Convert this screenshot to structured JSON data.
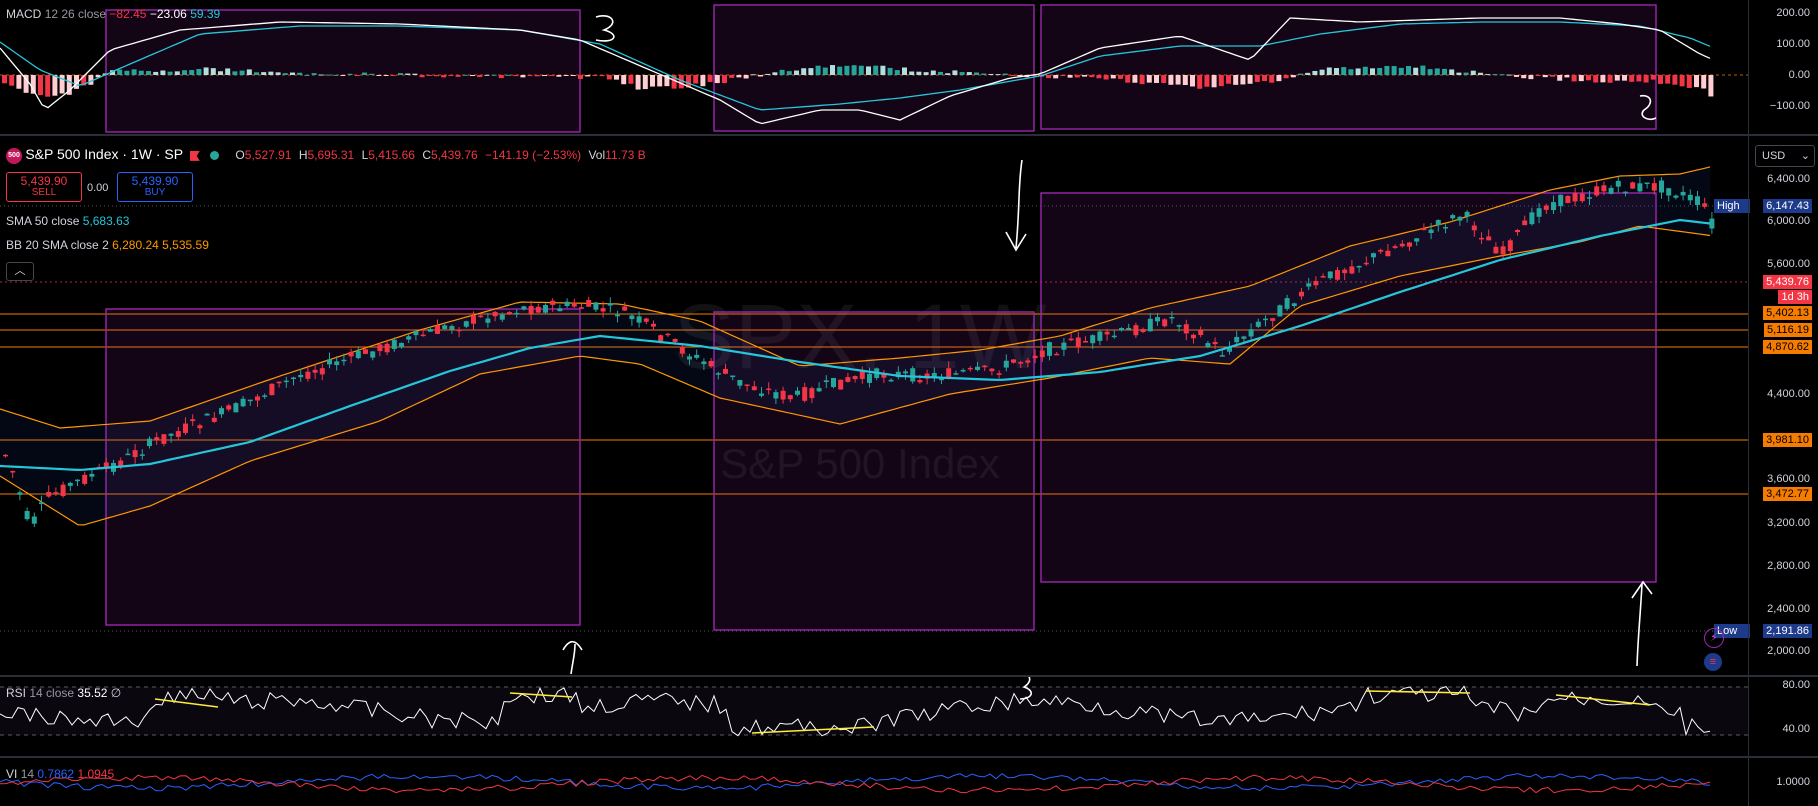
{
  "macd": {
    "legend": {
      "name": "MACD",
      "params": "12 26 close",
      "hist": "−82.45",
      "macd": "−23.06",
      "signal": "59.39"
    },
    "ticks": [
      "200.00",
      "100.00",
      "0.00",
      "−100.00"
    ]
  },
  "symbol": {
    "logo": "500",
    "title": "S&P 500 Index · 1W · SP",
    "ohlc": {
      "o_label": "O",
      "o": "5,527.91",
      "h_label": "H",
      "h": "5,695.31",
      "l_label": "L",
      "l": "5,415.66",
      "c_label": "C",
      "c": "5,439.76",
      "chg": "−141.19 (−2.53%)",
      "vol_label": "Vol",
      "vol": "11.73 B"
    },
    "sell": {
      "price": "5,439.90",
      "label": "SELL"
    },
    "spread": "0.00",
    "buy": {
      "price": "5,439.90",
      "label": "BUY"
    }
  },
  "sma": {
    "name": "SMA",
    "params": "50 close",
    "value": "5,683.63"
  },
  "bb": {
    "name": "BB",
    "params": "20 SMA close 2",
    "upper": "6,280.24",
    "lower": "5,535.59"
  },
  "watermark": {
    "ticker": "SPX, 1W",
    "name": "S&P 500 Index"
  },
  "price_axis": {
    "currency": "USD",
    "ticks": [
      "6,400.00",
      "6,000.00",
      "5,600.00",
      "4,400.00",
      "3,600.00",
      "3,200.00",
      "2,800.00",
      "2,400.00",
      "2,000.00"
    ],
    "high_label": "High",
    "high": "6,147.43",
    "last": "5,439.76",
    "countdown": "1d 3h",
    "levels": [
      "5,402.13",
      "5,116.19",
      "4,870.62",
      "3,981.10",
      "3,472.77"
    ],
    "low_label": "Low",
    "low": "2,191.86"
  },
  "rsi": {
    "name": "RSI",
    "params": "14 close",
    "value": "35.52",
    "extra": "∅",
    "ticks": [
      "80.00",
      "40.00"
    ]
  },
  "vi": {
    "name": "VI",
    "params": "14",
    "plus": "0.7862",
    "minus": "1.0945",
    "ticks": [
      "1.0000"
    ]
  },
  "colors": {
    "up": "#26a69a",
    "down": "#f23645",
    "sma": "#26c6da",
    "bb": "#ff9800",
    "box": "#9c27b0",
    "hline": "#f57c00"
  }
}
